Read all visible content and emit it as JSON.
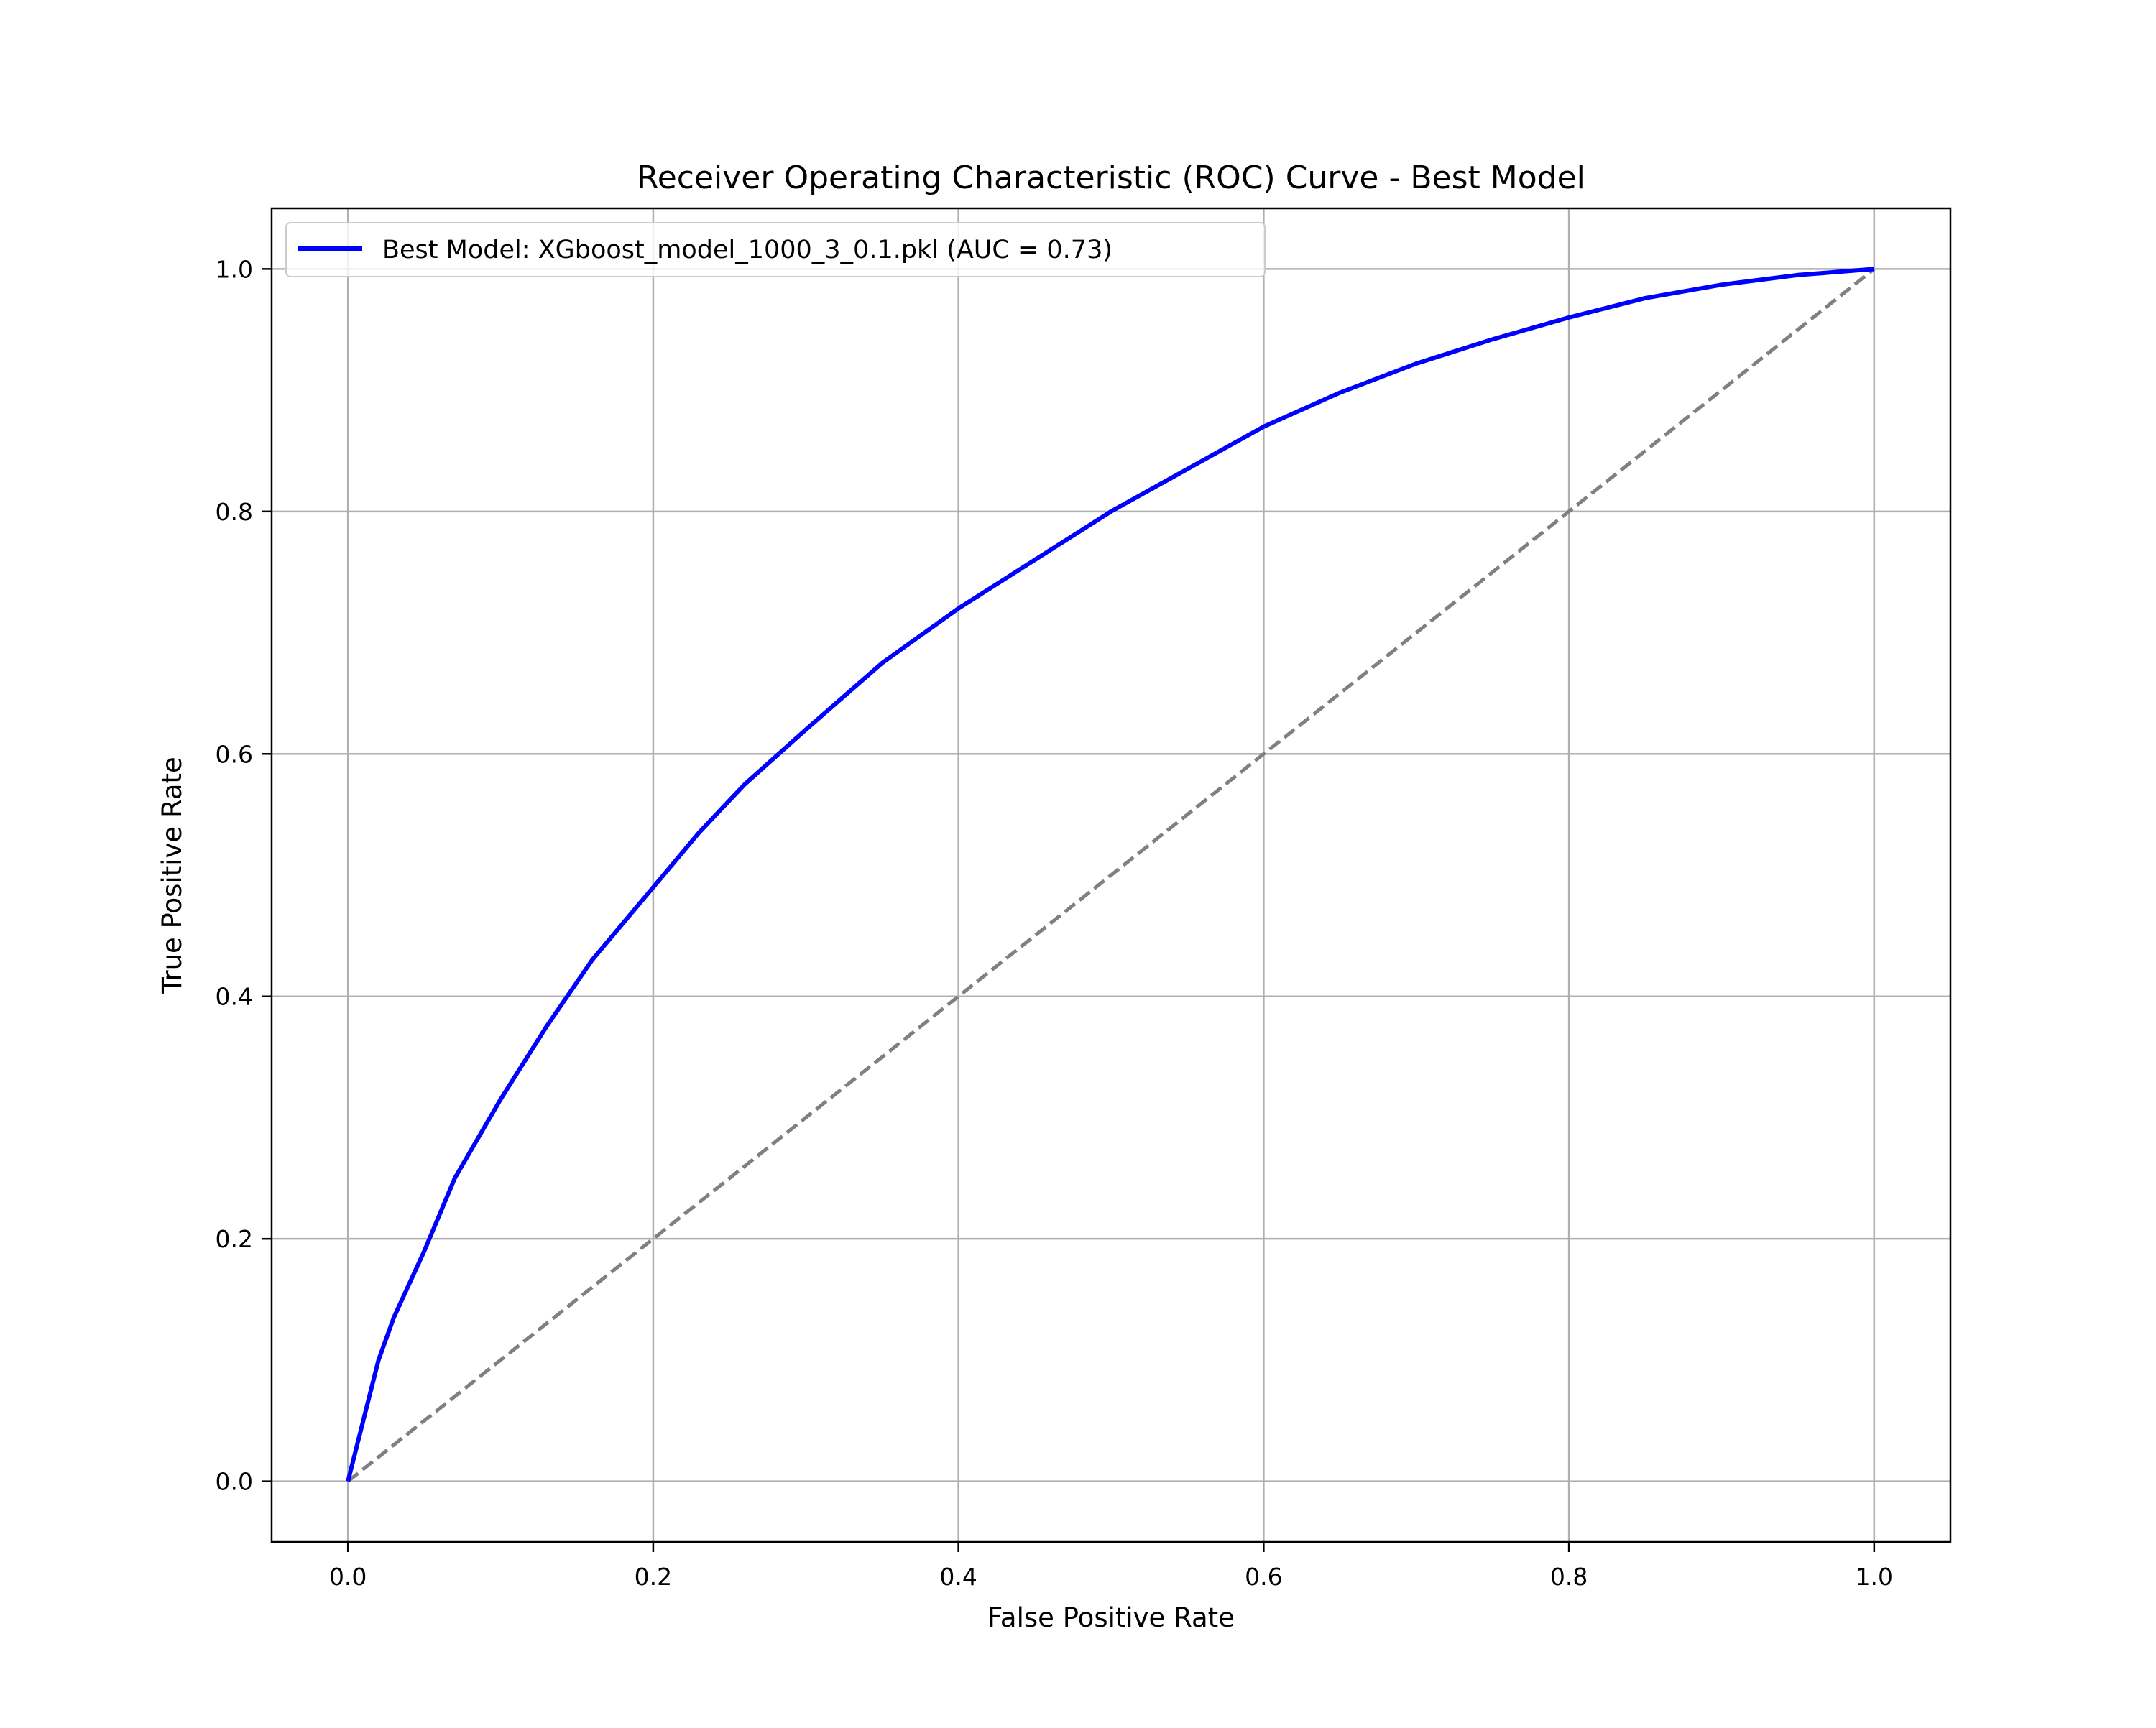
{
  "chart_data": {
    "type": "line",
    "title": "Receiver Operating Characteristic (ROC) Curve - Best Model",
    "xlabel": "False Positive Rate",
    "ylabel": "True Positive Rate",
    "xlim": [
      -0.05,
      1.05
    ],
    "ylim": [
      -0.05,
      1.05
    ],
    "xticks": [
      0.0,
      0.2,
      0.4,
      0.6,
      0.8,
      1.0
    ],
    "yticks": [
      0.0,
      0.2,
      0.4,
      0.6,
      0.8,
      1.0
    ],
    "xtick_labels": [
      "0.0",
      "0.2",
      "0.4",
      "0.6",
      "0.8",
      "1.0"
    ],
    "ytick_labels": [
      "0.0",
      "0.2",
      "0.4",
      "0.6",
      "0.8",
      "1.0"
    ],
    "grid": true,
    "legend_position": "top-left",
    "series": [
      {
        "name": "Best Model: XGboost_model_1000_3_0.1.pkl (AUC = 0.73)",
        "color": "#0000ff",
        "style": "solid",
        "in_legend": true,
        "x": [
          0.0,
          0.01,
          0.02,
          0.03,
          0.05,
          0.07,
          0.1,
          0.13,
          0.16,
          0.2,
          0.23,
          0.26,
          0.3,
          0.35,
          0.4,
          0.45,
          0.5,
          0.55,
          0.6,
          0.65,
          0.7,
          0.75,
          0.8,
          0.85,
          0.9,
          0.95,
          1.0
        ],
        "y": [
          0.0,
          0.05,
          0.1,
          0.135,
          0.19,
          0.25,
          0.315,
          0.375,
          0.43,
          0.49,
          0.535,
          0.575,
          0.62,
          0.675,
          0.72,
          0.76,
          0.8,
          0.835,
          0.87,
          0.898,
          0.922,
          0.942,
          0.96,
          0.976,
          0.987,
          0.995,
          1.0
        ]
      },
      {
        "color": "#808080",
        "style": "dashed",
        "in_legend": false,
        "x": [
          0.0,
          1.0
        ],
        "y": [
          0.0,
          1.0
        ]
      }
    ]
  }
}
